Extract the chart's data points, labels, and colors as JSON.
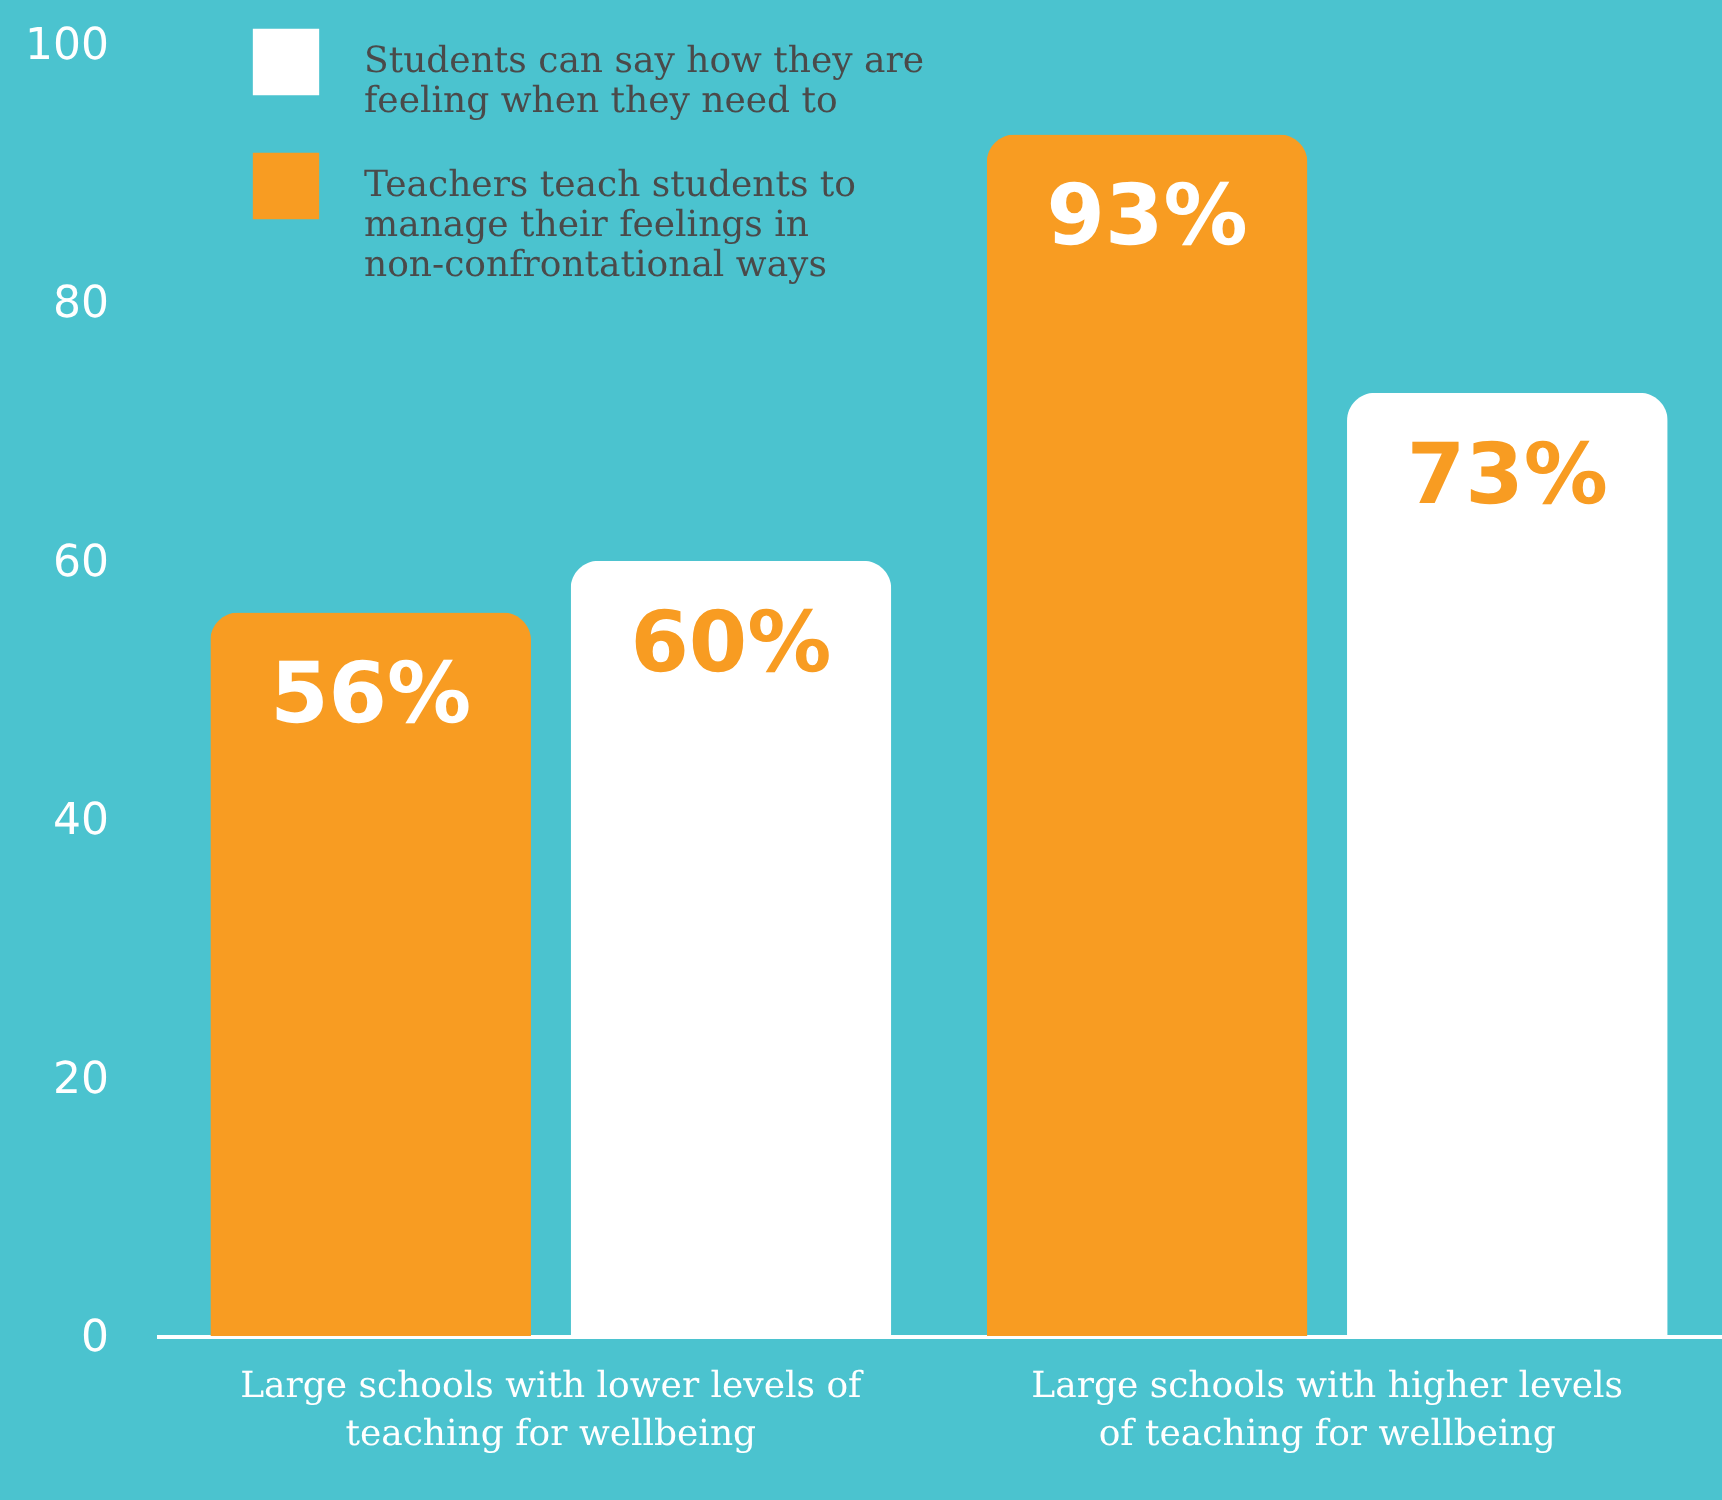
{
  "chart_data": {
    "type": "bar",
    "categories": [
      "Large schools with lower levels of teaching for wellbeing",
      "Large schools with higher levels of teaching for wellbeing"
    ],
    "series": [
      {
        "name": "Teachers teach students to manage their feelings in non-confrontational ways",
        "color": "#f89c22",
        "values": [
          56,
          93
        ],
        "value_labels": [
          "56%",
          "93%"
        ]
      },
      {
        "name": "Students can say how they are feeling when they need to",
        "color": "#ffffff",
        "values": [
          60,
          73
        ],
        "value_labels": [
          "60%",
          "73%"
        ]
      }
    ],
    "ylim": [
      0,
      100
    ],
    "yticks": [
      0,
      20,
      40,
      60,
      80,
      100
    ],
    "grid": false,
    "legend": "top left"
  }
}
